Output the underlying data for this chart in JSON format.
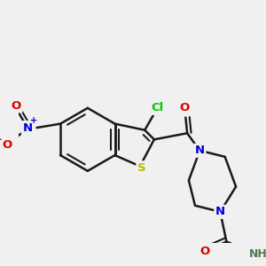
{
  "bg_color": "#f0f0f0",
  "bond_color": "#1a1a1a",
  "bond_width": 1.8,
  "atoms": {
    "Cl": {
      "color": "#00cc00",
      "fontsize": 9.5
    },
    "S": {
      "color": "#b8b800",
      "fontsize": 9.5
    },
    "N": {
      "color": "#0000dd",
      "fontsize": 9.5
    },
    "O": {
      "color": "#dd0000",
      "fontsize": 9.5
    },
    "NH": {
      "color": "#557755",
      "fontsize": 9.0
    },
    "NO2_N": {
      "color": "#0000dd",
      "fontsize": 9.5
    },
    "NO2_O": {
      "color": "#dd0000",
      "fontsize": 9.5
    }
  }
}
